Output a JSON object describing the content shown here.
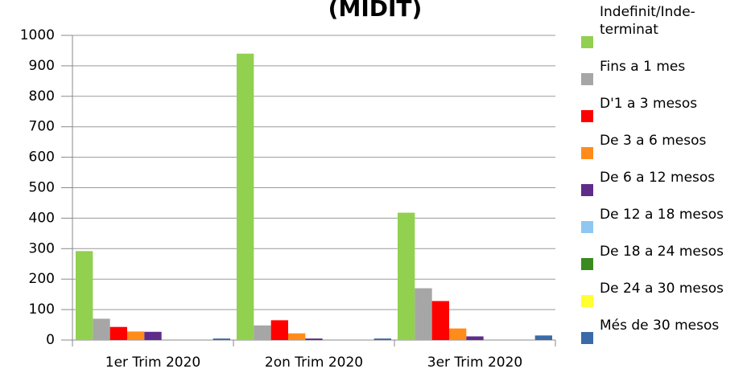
{
  "chart_data": {
    "type": "bar",
    "title": "(MIDIT)",
    "categories": [
      "1er Trim 2020",
      "2on Trim 2020",
      "3er Trim 2020"
    ],
    "series": [
      {
        "name": "Indefinit/Inde-terminat",
        "color": "#92d050",
        "values": [
          292,
          940,
          418
        ]
      },
      {
        "name": "Fins a 1 mes",
        "color": "#a6a6a6",
        "values": [
          70,
          48,
          170
        ]
      },
      {
        "name": "D'1 a 3 mesos",
        "color": "#ff0000",
        "values": [
          43,
          65,
          128
        ]
      },
      {
        "name": "De 3 a 6 mesos",
        "color": "#ff8c1a",
        "values": [
          28,
          22,
          38
        ]
      },
      {
        "name": "De 6 a 12 mesos",
        "color": "#5f2c8a",
        "values": [
          27,
          5,
          12
        ]
      },
      {
        "name": "De 12 a 18 mesos",
        "color": "#8ec8f0",
        "values": [
          0,
          0,
          0
        ]
      },
      {
        "name": "De 18 a 24 mesos",
        "color": "#3a8a20",
        "values": [
          0,
          0,
          0
        ]
      },
      {
        "name": "De 24 a 30 mesos",
        "color": "#ffff33",
        "values": [
          0,
          0,
          0
        ]
      },
      {
        "name": "Més de 30 mesos",
        "color": "#3a6aa8",
        "values": [
          5,
          5,
          15
        ]
      }
    ],
    "ylim": [
      0,
      1000
    ],
    "yticks": [
      0,
      100,
      200,
      300,
      400,
      500,
      600,
      700,
      800,
      900,
      1000
    ],
    "grid": true,
    "legend": "right"
  }
}
